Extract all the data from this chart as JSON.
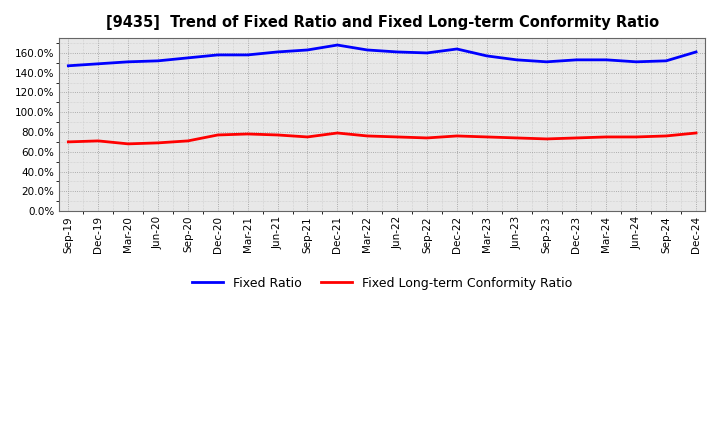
{
  "title": "[9435]  Trend of Fixed Ratio and Fixed Long-term Conformity Ratio",
  "x_labels": [
    "Sep-19",
    "Dec-19",
    "Mar-20",
    "Jun-20",
    "Sep-20",
    "Dec-20",
    "Mar-21",
    "Jun-21",
    "Sep-21",
    "Dec-21",
    "Mar-22",
    "Jun-22",
    "Sep-22",
    "Dec-22",
    "Mar-23",
    "Jun-23",
    "Sep-23",
    "Dec-23",
    "Mar-24",
    "Jun-24",
    "Sep-24",
    "Dec-24"
  ],
  "fixed_ratio": [
    147,
    149,
    151,
    152,
    155,
    158,
    158,
    161,
    163,
    168,
    163,
    161,
    160,
    164,
    157,
    153,
    151,
    153,
    153,
    151,
    152,
    161
  ],
  "fixed_lt_ratio": [
    70,
    71,
    68,
    69,
    71,
    77,
    78,
    77,
    75,
    79,
    76,
    75,
    74,
    76,
    75,
    74,
    73,
    74,
    75,
    75,
    76,
    79
  ],
  "ylim": [
    0,
    175
  ],
  "yticks": [
    0,
    20,
    40,
    60,
    80,
    100,
    120,
    140,
    160
  ],
  "fixed_ratio_color": "#0000FF",
  "fixed_lt_ratio_color": "#FF0000",
  "background_color": "#FFFFFF",
  "plot_bg_color": "#E8E8E8",
  "grid_color": "#AAAAAA",
  "legend_fixed_ratio": "Fixed Ratio",
  "legend_fixed_lt_ratio": "Fixed Long-term Conformity Ratio",
  "line_width": 2.0
}
